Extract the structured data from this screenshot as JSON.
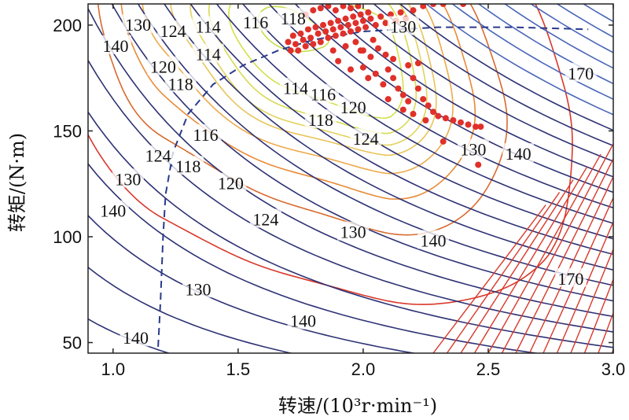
{
  "chart_data": {
    "type": "contour",
    "title": "",
    "xlabel": "转速/(10³r·min⁻¹)",
    "ylabel": "转矩/(N·m)",
    "xlim": [
      0.9,
      3.0
    ],
    "ylim": [
      45,
      210
    ],
    "xticks": [
      "1.0",
      "1.5",
      "2.0",
      "2.5",
      "3.0"
    ],
    "yticks": [
      "50",
      "100",
      "150",
      "200"
    ],
    "xtick_values": [
      1.0,
      1.5,
      2.0,
      2.5,
      3.0
    ],
    "ytick_values": [
      50,
      100,
      150,
      200
    ],
    "contour_levels": [
      112,
      114,
      116,
      118,
      120,
      124,
      130,
      140,
      170
    ],
    "contour_optimum": {
      "x": 1.85,
      "y": 188
    },
    "contour_labels": [
      {
        "text": "114",
        "x": 1.38,
        "y": 199
      },
      {
        "text": "116",
        "x": 1.57,
        "y": 201
      },
      {
        "text": "118",
        "x": 1.72,
        "y": 203
      },
      {
        "text": "130",
        "x": 1.1,
        "y": 200
      },
      {
        "text": "124",
        "x": 1.24,
        "y": 197
      },
      {
        "text": "140",
        "x": 1.01,
        "y": 190
      },
      {
        "text": "120",
        "x": 1.2,
        "y": 180
      },
      {
        "text": "118",
        "x": 1.27,
        "y": 172
      },
      {
        "text": "114",
        "x": 1.38,
        "y": 186
      },
      {
        "text": "114",
        "x": 1.73,
        "y": 170
      },
      {
        "text": "116",
        "x": 1.84,
        "y": 167
      },
      {
        "text": "118",
        "x": 1.83,
        "y": 155
      },
      {
        "text": "120",
        "x": 1.96,
        "y": 161
      },
      {
        "text": "124",
        "x": 2.01,
        "y": 146
      },
      {
        "text": "130",
        "x": 2.16,
        "y": 199
      },
      {
        "text": "130",
        "x": 2.44,
        "y": 141
      },
      {
        "text": "140",
        "x": 2.62,
        "y": 139
      },
      {
        "text": "170",
        "x": 2.87,
        "y": 177
      },
      {
        "text": "116",
        "x": 1.37,
        "y": 148
      },
      {
        "text": "118",
        "x": 1.3,
        "y": 133
      },
      {
        "text": "120",
        "x": 1.47,
        "y": 125
      },
      {
        "text": "124",
        "x": 1.18,
        "y": 138
      },
      {
        "text": "130",
        "x": 1.06,
        "y": 127
      },
      {
        "text": "140",
        "x": 1.0,
        "y": 112
      },
      {
        "text": "124",
        "x": 1.61,
        "y": 108
      },
      {
        "text": "130",
        "x": 1.96,
        "y": 102
      },
      {
        "text": "140",
        "x": 2.28,
        "y": 98
      },
      {
        "text": "170",
        "x": 2.83,
        "y": 80
      },
      {
        "text": "130",
        "x": 1.34,
        "y": 75
      },
      {
        "text": "140",
        "x": 1.76,
        "y": 60
      },
      {
        "text": "140",
        "x": 1.09,
        "y": 52
      }
    ],
    "dashed_boundary": [
      [
        1.18,
        48
      ],
      [
        1.19,
        70
      ],
      [
        1.2,
        100
      ],
      [
        1.21,
        120
      ],
      [
        1.24,
        140
      ],
      [
        1.3,
        158
      ],
      [
        1.4,
        172
      ],
      [
        1.52,
        181
      ],
      [
        1.66,
        188
      ],
      [
        1.8,
        193
      ],
      [
        2.0,
        197
      ],
      [
        2.3,
        199
      ],
      [
        2.6,
        199
      ],
      [
        2.9,
        198
      ]
    ],
    "points": [
      [
        1.7,
        192
      ],
      [
        1.71,
        188
      ],
      [
        1.72,
        195
      ],
      [
        1.73,
        191
      ],
      [
        1.74,
        188
      ],
      [
        1.75,
        196
      ],
      [
        1.76,
        193
      ],
      [
        1.77,
        190
      ],
      [
        1.78,
        198
      ],
      [
        1.79,
        194
      ],
      [
        1.8,
        191
      ],
      [
        1.81,
        199
      ],
      [
        1.82,
        196
      ],
      [
        1.83,
        192
      ],
      [
        1.84,
        200
      ],
      [
        1.85,
        197
      ],
      [
        1.86,
        194
      ],
      [
        1.87,
        201
      ],
      [
        1.88,
        198
      ],
      [
        1.89,
        195
      ],
      [
        1.9,
        202
      ],
      [
        1.91,
        199
      ],
      [
        1.92,
        196
      ],
      [
        1.93,
        203
      ],
      [
        1.94,
        200
      ],
      [
        1.95,
        197
      ],
      [
        1.96,
        204
      ],
      [
        1.97,
        201
      ],
      [
        1.98,
        198
      ],
      [
        1.99,
        205
      ],
      [
        2.0,
        202
      ],
      [
        2.01,
        199
      ],
      [
        2.02,
        206
      ],
      [
        2.03,
        203
      ],
      [
        2.05,
        200
      ],
      [
        2.07,
        204
      ],
      [
        2.09,
        201
      ],
      [
        2.11,
        205
      ],
      [
        2.13,
        202
      ],
      [
        2.15,
        206
      ],
      [
        2.17,
        203
      ],
      [
        2.2,
        207
      ],
      [
        2.24,
        209
      ],
      [
        2.28,
        210
      ],
      [
        2.32,
        210
      ],
      [
        2.4,
        210
      ],
      [
        1.77,
        205
      ],
      [
        1.8,
        207
      ],
      [
        1.83,
        208
      ],
      [
        1.86,
        209
      ],
      [
        1.89,
        207
      ],
      [
        1.92,
        209
      ],
      [
        1.95,
        208
      ],
      [
        1.98,
        209
      ],
      [
        1.88,
        188
      ],
      [
        1.93,
        190
      ],
      [
        1.97,
        192
      ],
      [
        2.0,
        188
      ],
      [
        2.03,
        185
      ],
      [
        2.06,
        189
      ],
      [
        2.09,
        186
      ],
      [
        1.9,
        183
      ],
      [
        1.95,
        179
      ],
      [
        2.0,
        180
      ],
      [
        2.02,
        175
      ],
      [
        2.05,
        177
      ],
      [
        2.08,
        172
      ],
      [
        2.1,
        179
      ],
      [
        2.12,
        175
      ],
      [
        2.14,
        170
      ],
      [
        2.16,
        167
      ],
      [
        2.18,
        164
      ],
      [
        2.2,
        175
      ],
      [
        2.22,
        170
      ],
      [
        2.24,
        165
      ],
      [
        2.26,
        162
      ],
      [
        2.28,
        159
      ],
      [
        2.3,
        157
      ],
      [
        2.33,
        156
      ],
      [
        2.36,
        155
      ],
      [
        2.39,
        154
      ],
      [
        2.42,
        153
      ],
      [
        2.45,
        152
      ],
      [
        2.47,
        152
      ],
      [
        2.16,
        160
      ],
      [
        2.2,
        158
      ],
      [
        2.25,
        155
      ],
      [
        2.1,
        165
      ],
      [
        2.32,
        145
      ],
      [
        2.46,
        134
      ],
      [
        1.99,
        188
      ],
      [
        2.04,
        193
      ],
      [
        2.12,
        184
      ],
      [
        2.18,
        181
      ],
      [
        2.22,
        182
      ]
    ]
  }
}
